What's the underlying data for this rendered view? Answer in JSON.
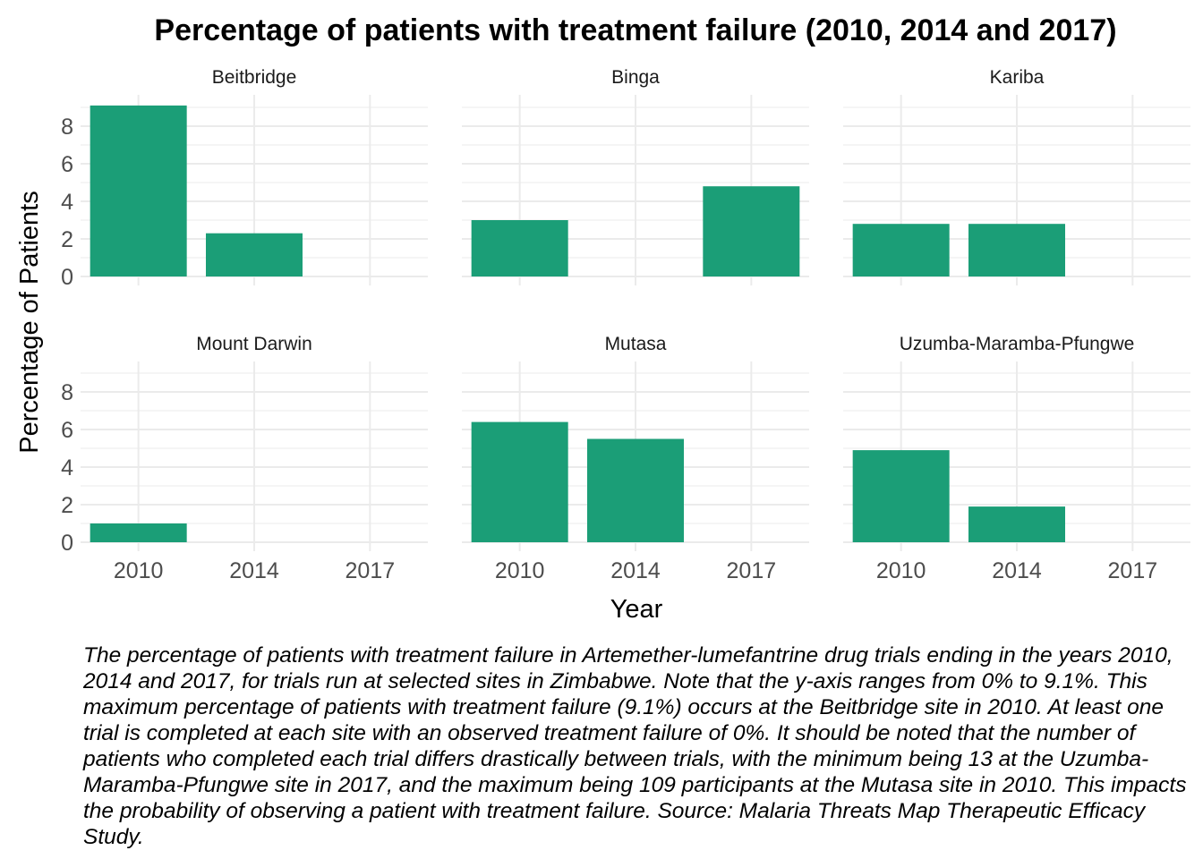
{
  "chart_data": {
    "type": "bar",
    "title": "Percentage of patients with treatment failure (2010, 2014 and 2017)",
    "xlabel": "Year",
    "ylabel": "Percentage of Patients",
    "categories": [
      "2010",
      "2014",
      "2017"
    ],
    "yticks": [
      "0",
      "2",
      "4",
      "6",
      "8"
    ],
    "ylim": [
      0,
      9.1
    ],
    "grid": true,
    "bar_color": "#1b9e77",
    "grid_color": "#ebebeb",
    "panels": [
      {
        "name": "Beitbridge",
        "values": [
          9.1,
          2.3,
          0
        ]
      },
      {
        "name": "Binga",
        "values": [
          3.0,
          0,
          4.8
        ]
      },
      {
        "name": "Kariba",
        "values": [
          2.8,
          2.8,
          0
        ]
      },
      {
        "name": "Mount Darwin",
        "values": [
          1.0,
          0,
          0
        ]
      },
      {
        "name": "Mutasa",
        "values": [
          6.4,
          5.5,
          0
        ]
      },
      {
        "name": "Uzumba-Maramba-Pfungwe",
        "values": [
          4.9,
          1.9,
          0
        ]
      }
    ]
  },
  "caption": "The percentage of patients with treatment failure in Artemether-lumefantrine drug trials ending in the years 2010, 2014 and 2017, for trials run at selected sites in Zimbabwe. Note that the y-axis ranges from 0% to 9.1%. This maximum percentage of patients with treatment failure (9.1%) occurs at the Beitbridge site in 2010. At least one trial is completed at each site with an observed treatment failure of 0%. It should be noted that the number of patients who completed each trial differs drastically between trials, with the minimum being 13 at the Uzumba-Maramba-Pfungwe site in 2017, and the maximum being 109 participants at the Mutasa site in 2010. This impacts the probability of observing a patient with treatment failure. Source: Malaria Threats Map Therapeutic Efficacy Study."
}
